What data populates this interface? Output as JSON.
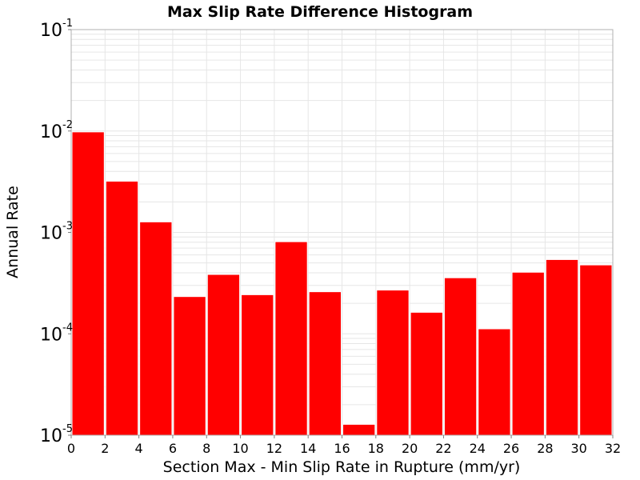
{
  "chart_data": {
    "type": "bar",
    "title": "Max Slip Rate Difference Histogram",
    "xlabel": "Section Max - Min Slip Rate in Rupture (mm/yr)",
    "ylabel": "Annual Rate",
    "x_scale": "linear",
    "y_scale": "log",
    "xlim": [
      0,
      32
    ],
    "ylim": [
      1e-05,
      0.1
    ],
    "x_ticks": [
      "0",
      "2",
      "4",
      "6",
      "8",
      "10",
      "12",
      "14",
      "16",
      "18",
      "20",
      "22",
      "24",
      "26",
      "28",
      "30",
      "32"
    ],
    "y_ticks": [
      {
        "base": "10",
        "exponent": "-5",
        "value": 1e-05
      },
      {
        "base": "10",
        "exponent": "-4",
        "value": 0.0001
      },
      {
        "base": "10",
        "exponent": "-3",
        "value": 0.001
      },
      {
        "base": "10",
        "exponent": "-2",
        "value": 0.01
      },
      {
        "base": "10",
        "exponent": "-1",
        "value": 0.1
      }
    ],
    "bin_width": 2,
    "bin_starts": [
      0,
      2,
      4,
      6,
      8,
      10,
      12,
      14,
      16,
      18,
      20,
      22,
      24,
      26,
      28,
      30
    ],
    "values": [
      0.0098,
      0.0032,
      0.00127,
      0.000233,
      0.000385,
      0.000243,
      0.00081,
      0.00026,
      1.28e-05,
      0.00027,
      0.000163,
      0.000357,
      0.000112,
      0.000405,
      0.00054,
      0.000478
    ],
    "grid": true,
    "legend": "none",
    "colors": {
      "bar": "#ff0000",
      "bar_edge": "#ffffff",
      "grid": "#e6e6e6",
      "frame": "#b0b0b0",
      "background": "#ffffff"
    }
  }
}
